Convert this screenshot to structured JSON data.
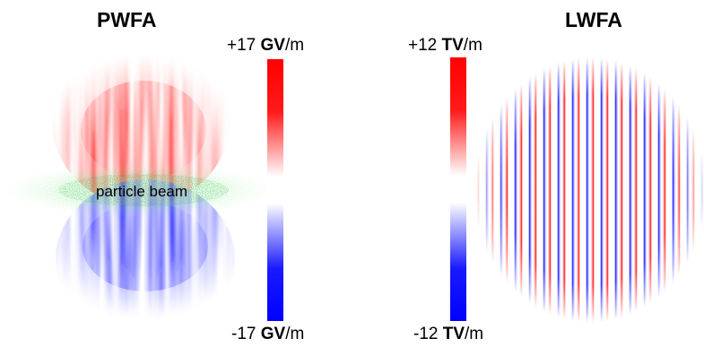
{
  "pwfa": {
    "title": "PWFA",
    "beam_label": "particle beam",
    "colorbar": {
      "max_num": "+17",
      "min_num": "-17",
      "unit_bold": "GV",
      "unit_rest": "/m"
    }
  },
  "lwfa": {
    "title": "LWFA",
    "colorbar": {
      "max_num": "+12",
      "min_num": "-12",
      "unit_bold": "TV",
      "unit_rest": "/m"
    }
  },
  "colors": {
    "positive": "#ff0000",
    "negative": "#0000ff",
    "beam": "#33cc44"
  }
}
